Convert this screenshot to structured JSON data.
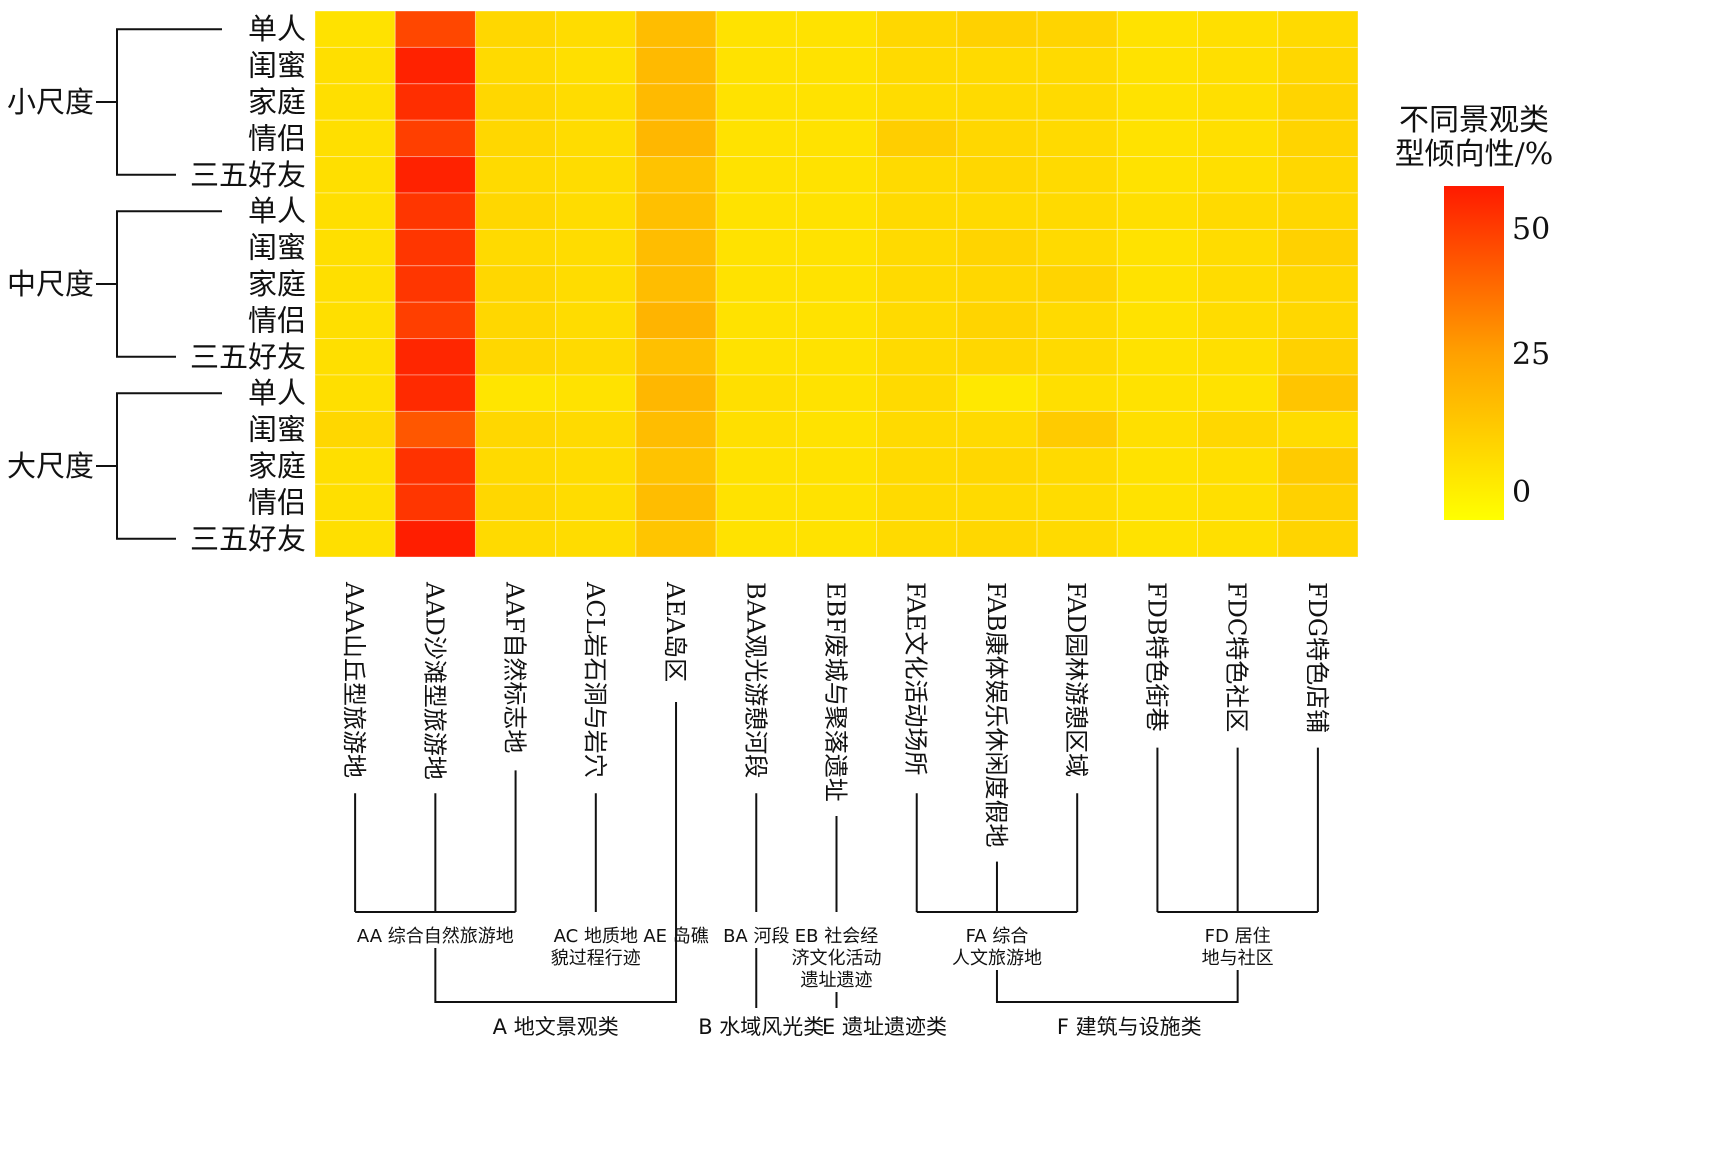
{
  "chart_data": {
    "type": "heatmap",
    "title": "",
    "legend": {
      "title_line1": "不同景观类",
      "title_line2": "型倾向性/%",
      "ticks": [
        "50",
        "25",
        "0"
      ],
      "tick_values": [
        50,
        25,
        0
      ],
      "range": [
        -8,
        58
      ],
      "color_low": "#FFFF00",
      "color_mid": "#FFA000",
      "color_high": "#FF1A00"
    },
    "row_groups": [
      {
        "label": "小尺度",
        "rows": [
          "单人",
          "闺蜜",
          "家庭",
          "情侣",
          "三五好友"
        ]
      },
      {
        "label": "中尺度",
        "rows": [
          "单人",
          "闺蜜",
          "家庭",
          "情侣",
          "三五好友"
        ]
      },
      {
        "label": "大尺度",
        "rows": [
          "单人",
          "闺蜜",
          "家庭",
          "情侣",
          "三五好友"
        ]
      }
    ],
    "columns": [
      "AAA山丘型旅游地",
      "AAD沙滩型旅游地",
      "AAF自然标志地",
      "ACL岩石洞与岩穴",
      "AEA岛区",
      "BAA观光游憩河段",
      "EBF废城与聚落遗址",
      "FAE文化活动场所",
      "FAB康体娱乐休闲度假地",
      "FAD园林游憩区域",
      "FDB特色街巷",
      "FDC特色社区",
      "FDG特色店铺"
    ],
    "values": [
      [
        2,
        47,
        6,
        4,
        15,
        2,
        2,
        6,
        8,
        7,
        2,
        3,
        5
      ],
      [
        3,
        56,
        5,
        3,
        16,
        2,
        2,
        5,
        5,
        5,
        2,
        3,
        6
      ],
      [
        3,
        53,
        6,
        4,
        16,
        2,
        2,
        4,
        5,
        5,
        2,
        3,
        7
      ],
      [
        3,
        49,
        6,
        4,
        17,
        2,
        2,
        9,
        6,
        5,
        2,
        3,
        7
      ],
      [
        3,
        56,
        5,
        4,
        13,
        2,
        2,
        5,
        6,
        5,
        2,
        3,
        6
      ],
      [
        3,
        51,
        6,
        4,
        14,
        2,
        2,
        5,
        5,
        5,
        3,
        5,
        6
      ],
      [
        3,
        51,
        5,
        4,
        15,
        2,
        2,
        5,
        7,
        5,
        2,
        4,
        8
      ],
      [
        3,
        51,
        6,
        4,
        15,
        2,
        2,
        5,
        6,
        7,
        2,
        4,
        6
      ],
      [
        3,
        49,
        6,
        4,
        18,
        2,
        2,
        5,
        7,
        5,
        2,
        4,
        6
      ],
      [
        3,
        55,
        6,
        5,
        14,
        2,
        2,
        5,
        6,
        5,
        2,
        3,
        8
      ],
      [
        3,
        54,
        1,
        2,
        17,
        3,
        2,
        5,
        0,
        3,
        2,
        2,
        12
      ],
      [
        6,
        43,
        6,
        5,
        15,
        3,
        2,
        5,
        5,
        10,
        3,
        6,
        4
      ],
      [
        3,
        52,
        5,
        4,
        13,
        2,
        2,
        5,
        6,
        5,
        2,
        3,
        10
      ],
      [
        3,
        51,
        6,
        4,
        15,
        2,
        2,
        5,
        5,
        4,
        2,
        3,
        8
      ],
      [
        3,
        57,
        5,
        4,
        12,
        2,
        2,
        5,
        6,
        5,
        2,
        3,
        7
      ]
    ],
    "categories_level1": [
      {
        "label": "AA 综合自然旅游地",
        "columns": [
          0,
          1,
          2
        ]
      },
      {
        "label": "AC 地质地貌过程行迹",
        "lines": [
          "AC 地质地",
          "貌过程行迹"
        ],
        "columns": [
          3
        ]
      },
      {
        "label": "AE 岛礁",
        "columns": [
          4
        ]
      },
      {
        "label": "BA 河段",
        "columns": [
          5
        ]
      },
      {
        "label": "EB 社会经济文化活动遗址遗迹",
        "lines": [
          "EB 社会经",
          "济文化活动",
          "遗址遗迹"
        ],
        "columns": [
          6
        ]
      },
      {
        "label": "FA 综合人文旅游地",
        "lines": [
          "FA 综合",
          "人文旅游地"
        ],
        "columns": [
          7,
          8,
          9
        ]
      },
      {
        "label": "FD 居住地与社区",
        "lines": [
          "FD 居住",
          "地与社区"
        ],
        "columns": [
          10,
          11,
          12
        ]
      }
    ],
    "categories_level2": [
      {
        "label": "A 地文景观类"
      },
      {
        "label": "B 水域风光类"
      },
      {
        "label": "E 遗址遗迹类"
      },
      {
        "label": "F 建筑与设施类"
      }
    ]
  }
}
